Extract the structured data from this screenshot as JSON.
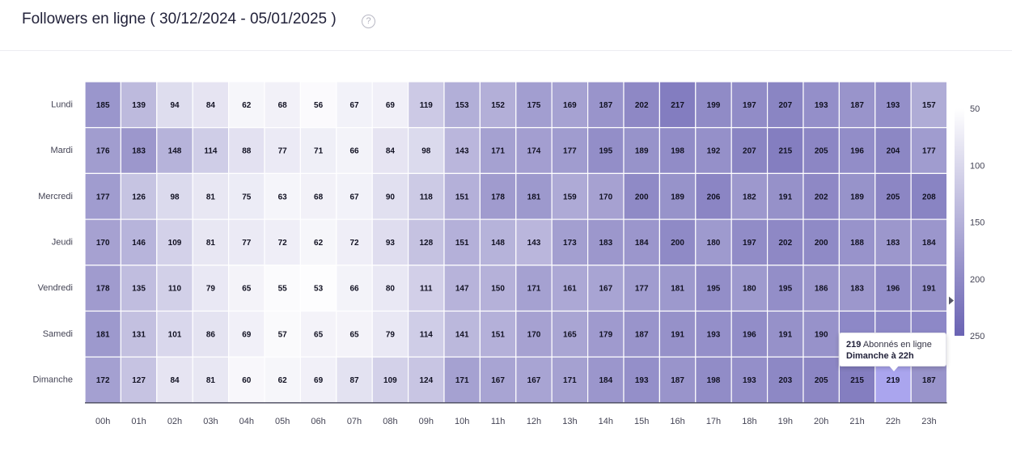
{
  "header": {
    "title": "Followers en ligne ( 30/12/2024 - 05/01/2025 )",
    "help_icon": "?"
  },
  "chart_data": {
    "type": "heatmap",
    "rows": [
      "Lundi",
      "Mardi",
      "Mercredi",
      "Jeudi",
      "Vendredi",
      "Samedi",
      "Dimanche"
    ],
    "columns": [
      "00h",
      "01h",
      "02h",
      "03h",
      "04h",
      "05h",
      "06h",
      "07h",
      "08h",
      "09h",
      "10h",
      "11h",
      "12h",
      "13h",
      "14h",
      "15h",
      "16h",
      "17h",
      "18h",
      "19h",
      "20h",
      "21h",
      "22h",
      "23h"
    ],
    "values": [
      [
        185,
        139,
        94,
        84,
        62,
        68,
        56,
        67,
        69,
        119,
        153,
        152,
        175,
        169,
        187,
        202,
        217,
        199,
        197,
        207,
        193,
        187,
        193,
        157
      ],
      [
        176,
        183,
        148,
        114,
        88,
        77,
        71,
        66,
        84,
        98,
        143,
        171,
        174,
        177,
        195,
        189,
        198,
        192,
        207,
        215,
        205,
        196,
        204,
        177
      ],
      [
        177,
        126,
        98,
        81,
        75,
        63,
        68,
        67,
        90,
        118,
        151,
        178,
        181,
        159,
        170,
        200,
        189,
        206,
        182,
        191,
        202,
        189,
        205,
        208
      ],
      [
        170,
        146,
        109,
        81,
        77,
        72,
        62,
        72,
        93,
        128,
        151,
        148,
        143,
        173,
        183,
        184,
        200,
        180,
        197,
        202,
        200,
        188,
        183,
        184
      ],
      [
        178,
        135,
        110,
        79,
        65,
        55,
        53,
        66,
        80,
        111,
        147,
        150,
        171,
        161,
        167,
        177,
        181,
        195,
        180,
        195,
        186,
        183,
        196,
        191
      ],
      [
        181,
        131,
        101,
        86,
        69,
        57,
        65,
        65,
        79,
        114,
        141,
        151,
        170,
        165,
        179,
        187,
        191,
        193,
        196,
        191,
        190,
        null,
        null,
        null
      ],
      [
        172,
        127,
        84,
        81,
        60,
        62,
        69,
        87,
        109,
        124,
        171,
        167,
        167,
        171,
        184,
        193,
        187,
        198,
        193,
        203,
        205,
        215,
        219,
        187
      ]
    ],
    "colorbar": {
      "ticks": [
        "50",
        "100",
        "150",
        "200",
        "250"
      ],
      "min": 50,
      "max": 250,
      "color_low": "#ffffff",
      "color_high": "#6a63b3"
    },
    "highlight": {
      "row": 6,
      "col": 22,
      "color": "#aaa5ee"
    },
    "tooltip": {
      "value": "219",
      "text": "Abonnés en ligne",
      "label": "Dimanche à 22h"
    }
  }
}
